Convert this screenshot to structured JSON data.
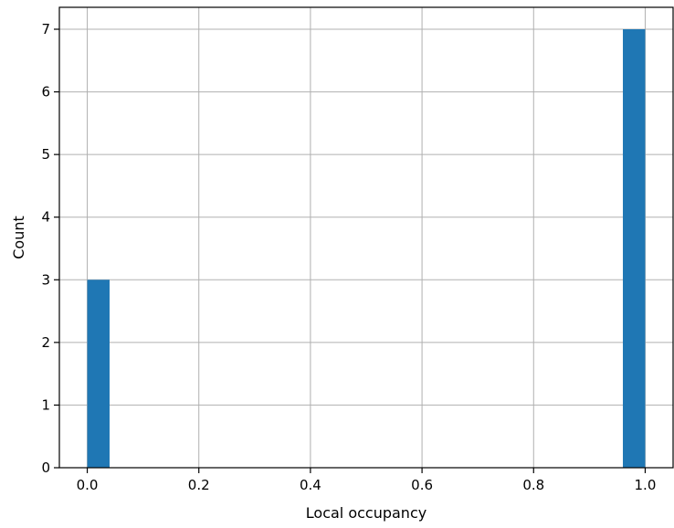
{
  "chart_data": {
    "type": "bar",
    "xlabel": "Local occupancy",
    "ylabel": "Count",
    "xlim": [
      -0.05,
      1.05
    ],
    "ylim": [
      0,
      7.35
    ],
    "x_ticks": [
      0.0,
      0.2,
      0.4,
      0.6,
      0.8,
      1.0
    ],
    "x_tick_labels": [
      "0.0",
      "0.2",
      "0.4",
      "0.6",
      "0.8",
      "1.0"
    ],
    "y_ticks": [
      0,
      1,
      2,
      3,
      4,
      5,
      6,
      7
    ],
    "y_tick_labels": [
      "0",
      "1",
      "2",
      "3",
      "4",
      "5",
      "6",
      "7"
    ],
    "grid": true,
    "bins": [
      {
        "x0": 0.0,
        "x1": 0.04,
        "count": 3
      },
      {
        "x0": 0.96,
        "x1": 1.0,
        "count": 7
      }
    ],
    "colors": {
      "bar": "#1f77b4",
      "grid": "#b0b0b0",
      "axis": "#000000"
    }
  }
}
